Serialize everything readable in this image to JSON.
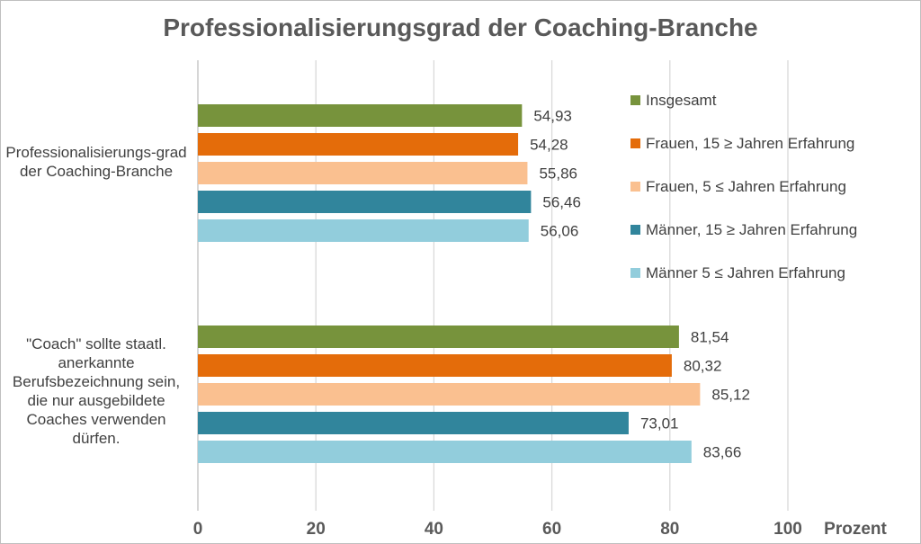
{
  "chart_data": {
    "type": "bar",
    "orientation": "horizontal",
    "title": "Professionalisierungsgrad der Coaching-Branche",
    "xlabel": "Prozent",
    "ylabel": "",
    "xlim": [
      0,
      100
    ],
    "xticks": [
      "0",
      "20",
      "40",
      "60",
      "80",
      "100"
    ],
    "grid": true,
    "legend_position": "right",
    "categories": [
      "Professionalisierungs-grad der Coaching-Branche",
      "\"Coach\" sollte staatl. anerkannte Berufsbezeichnung sein, die nur ausgebildete Coaches verwenden dürfen."
    ],
    "series": [
      {
        "name": "Insgesamt",
        "color": "#77933c",
        "values": [
          54.93,
          81.54
        ],
        "labels": [
          "54,93",
          "81,54"
        ]
      },
      {
        "name": "Frauen, 15 ≥ Jahren Erfahrung",
        "color": "#e46c0a",
        "values": [
          54.28,
          80.32
        ],
        "labels": [
          "54,28",
          "80,32"
        ]
      },
      {
        "name": "Frauen, 5 ≤ Jahren Erfahrung",
        "color": "#fac090",
        "values": [
          55.86,
          85.12
        ],
        "labels": [
          "55,86",
          "85,12"
        ]
      },
      {
        "name": "Männer, 15 ≥ Jahren Erfahrung",
        "color": "#31859c",
        "values": [
          56.46,
          73.01
        ],
        "labels": [
          "56,46",
          "73,01"
        ]
      },
      {
        "name": "Männer 5 ≤ Jahren Erfahrung",
        "color": "#92cddc",
        "values": [
          56.06,
          83.66
        ],
        "labels": [
          "56,06",
          "83,66"
        ]
      }
    ]
  }
}
